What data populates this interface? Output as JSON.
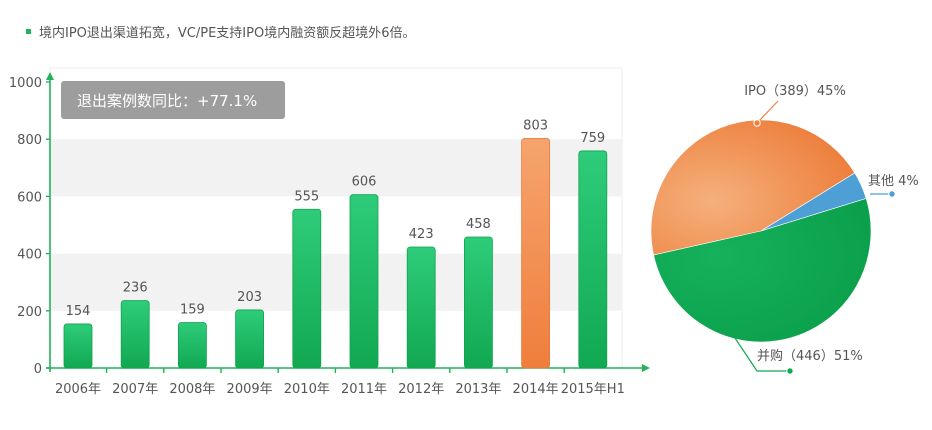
{
  "header": {
    "text": "境内IPO退出渠道拓宽，VC/PE支持IPO境内融资额反超境外6倍。"
  },
  "badge": {
    "text": "退出案例数同比：+77.1%"
  },
  "colors": {
    "bar_green_top": "#2ecc7a",
    "bar_green_bottom": "#12a852",
    "bar_orange_top": "#f6a46e",
    "bar_orange_bottom": "#ef7e3c",
    "axis_green": "#21b25a",
    "badge_bg": "#9d9d9d",
    "pie_ipo": "#ee8240",
    "pie_other": "#4e9fd6",
    "pie_ma": "#11a852"
  },
  "chart_data": [
    {
      "type": "bar",
      "categories": [
        "2006年",
        "2007年",
        "2008年",
        "2009年",
        "2010年",
        "2011年",
        "2012年",
        "2013年",
        "2014年",
        "2015年H1"
      ],
      "values": [
        154,
        236,
        159,
        203,
        555,
        606,
        423,
        458,
        803,
        759
      ],
      "highlight_index": 8,
      "ylim": [
        0,
        1000
      ],
      "yticks": [
        0,
        200,
        400,
        600,
        800,
        1000
      ],
      "grid": "alternating bands"
    },
    {
      "type": "pie",
      "slices": [
        {
          "label": "IPO（389）45%",
          "value": 389,
          "percent": 45
        },
        {
          "label": "其他 4%",
          "value": 35,
          "percent": 4
        },
        {
          "label": "并购（446）51%",
          "value": 446,
          "percent": 51
        }
      ]
    }
  ]
}
